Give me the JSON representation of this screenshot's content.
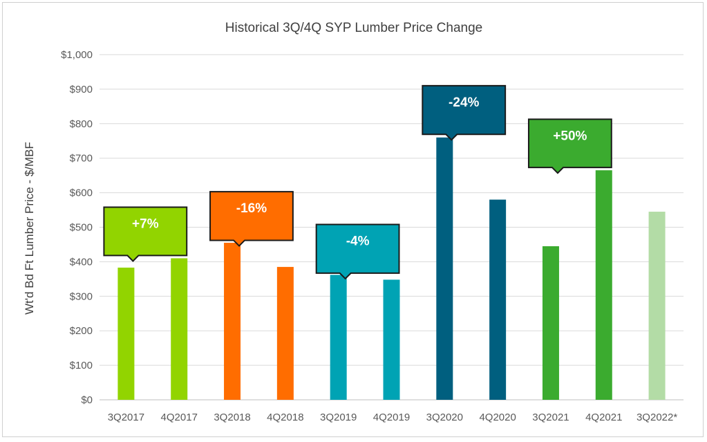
{
  "chart_data": {
    "type": "bar",
    "title": "Historical 3Q/4Q SYP Lumber Price Change",
    "ylabel": "Wt'd Bd Ft Lumber Price - $/MBF",
    "xlabel": "",
    "ylim": [
      0,
      1000
    ],
    "yticks": [
      0,
      100,
      200,
      300,
      400,
      500,
      600,
      700,
      800,
      900,
      1000
    ],
    "ytick_labels": [
      "$0",
      "$100",
      "$200",
      "$300",
      "$400",
      "$500",
      "$600",
      "$700",
      "$800",
      "$900",
      "$1,000"
    ],
    "grid": true,
    "categories": [
      "3Q2017",
      "4Q2017",
      "3Q2018",
      "4Q2018",
      "3Q2019",
      "4Q2019",
      "3Q2020",
      "4Q2020",
      "3Q2021",
      "4Q2021",
      "3Q2022*"
    ],
    "values": [
      383,
      410,
      455,
      385,
      362,
      348,
      760,
      580,
      445,
      665,
      545
    ],
    "colors": [
      "#92d400",
      "#92d400",
      "#ff6d00",
      "#ff6d00",
      "#00a3b4",
      "#00a3b4",
      "#005f7f",
      "#005f7f",
      "#3bab2f",
      "#3bab2f",
      "#b3dca6"
    ],
    "annotations": [
      {
        "text": "+7%",
        "pair": [
          0,
          1
        ],
        "color": "#92d400",
        "top_value": 558,
        "bottom_value": 418
      },
      {
        "text": "-16%",
        "pair": [
          2,
          3
        ],
        "color": "#ff6d00",
        "top_value": 603,
        "bottom_value": 462
      },
      {
        "text": "-4%",
        "pair": [
          4,
          5
        ],
        "color": "#00a3b4",
        "top_value": 508,
        "bottom_value": 367
      },
      {
        "text": "-24%",
        "pair": [
          6,
          7
        ],
        "color": "#005f7f",
        "top_value": 910,
        "bottom_value": 769
      },
      {
        "text": "+50%",
        "pair": [
          8,
          9
        ],
        "color": "#3bab2f",
        "top_value": 813,
        "bottom_value": 673
      }
    ]
  }
}
